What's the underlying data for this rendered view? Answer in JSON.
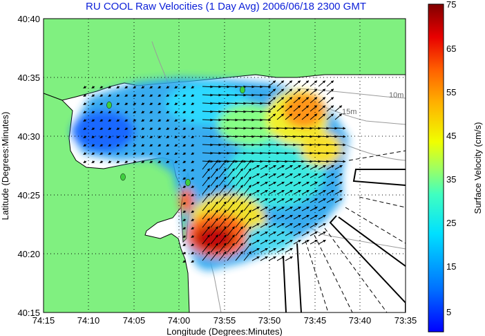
{
  "title": "RU COOL Raw Velocities (1 Day Avg) 2006/06/18 2300 GMT",
  "x_axis": {
    "label": "Longitude (Degrees:Minutes)",
    "ticks": [
      "74:15",
      "74:10",
      "74:05",
      "74:00",
      "73:55",
      "73:50",
      "73:45",
      "73:40",
      "73:35"
    ]
  },
  "y_axis": {
    "label": "Latitude (Degrees:Minutes)",
    "ticks": [
      "40:40",
      "40:35",
      "40:30",
      "40:25",
      "40:20",
      "40:15"
    ]
  },
  "colorbar": {
    "label": "Surface Velocity (cm/s)",
    "ticks": [
      "75",
      "65",
      "55",
      "45",
      "35",
      "25",
      "15",
      "5"
    ],
    "min": 0,
    "max": 75
  },
  "contours": [
    "10m",
    "15m"
  ],
  "colors": {
    "land": "#80f080",
    "water": "#ffffff",
    "title": "#0a1ed8",
    "station": "#3ecf3e"
  }
}
